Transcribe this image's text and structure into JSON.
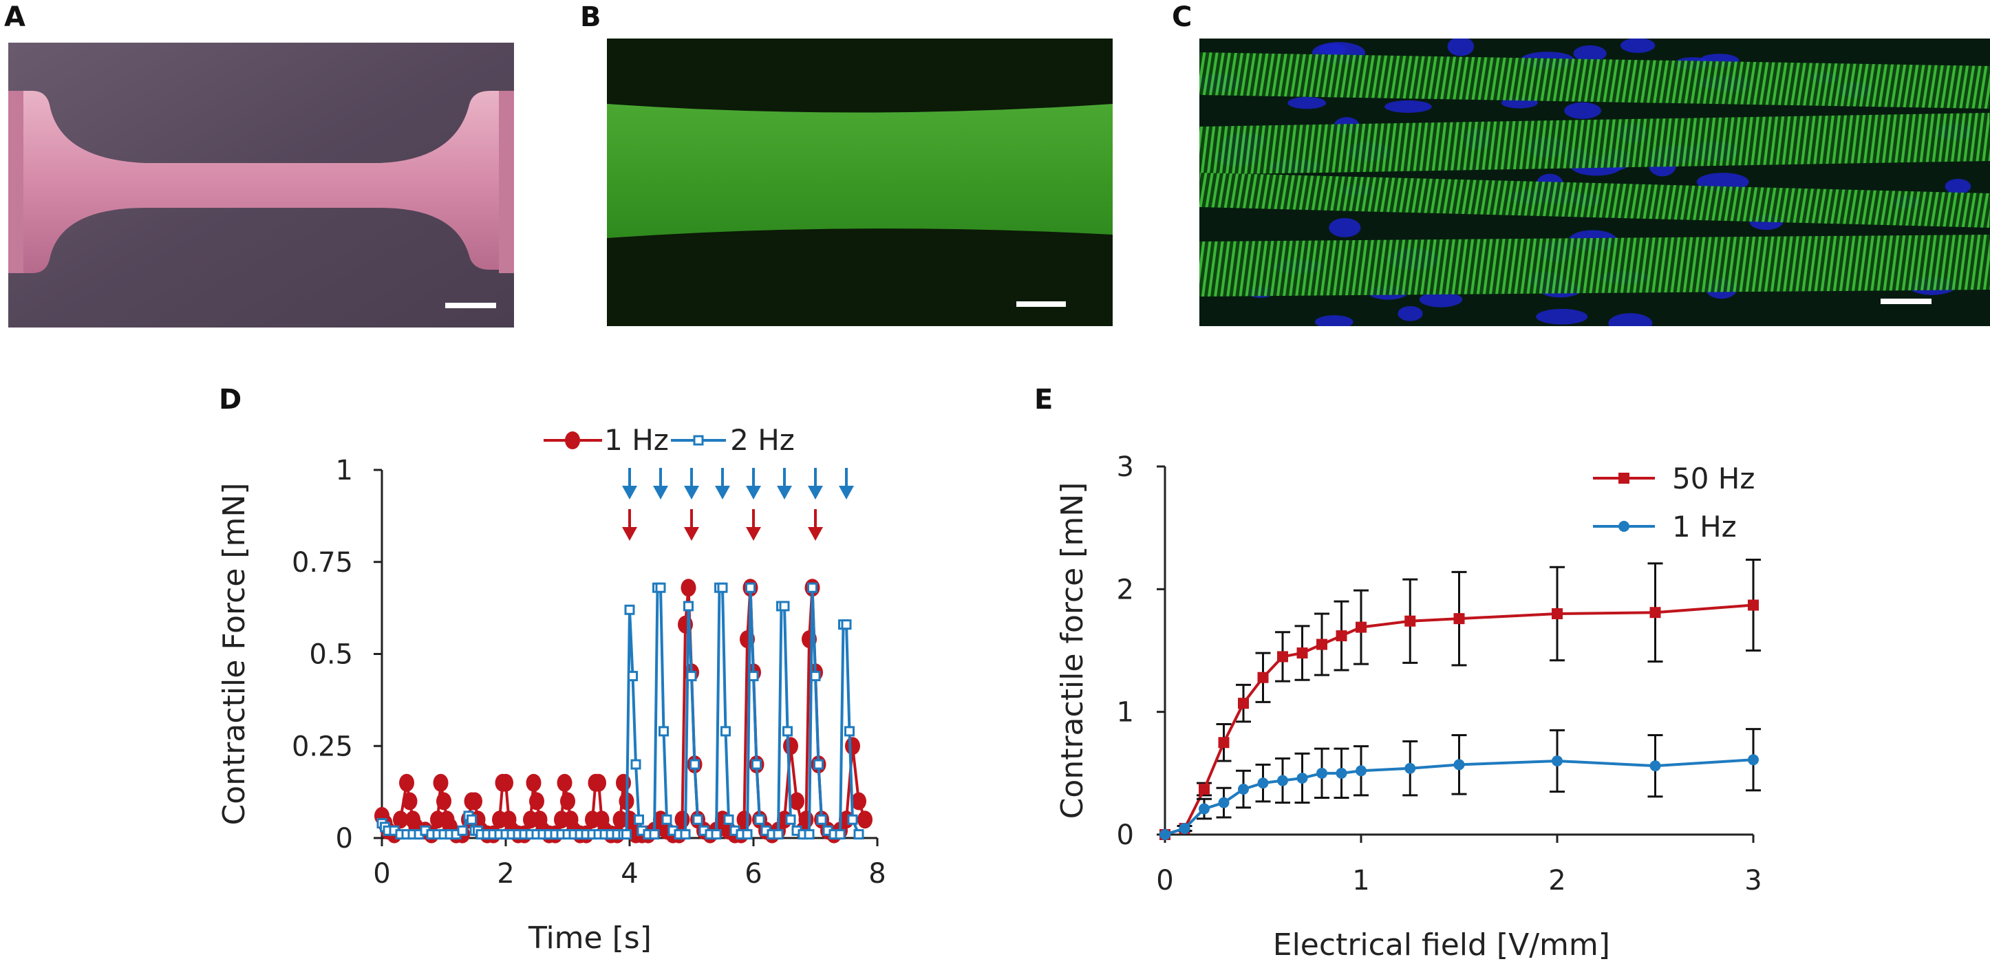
{
  "panels": {
    "a": {
      "label": "A"
    },
    "b": {
      "label": "B"
    },
    "c": {
      "label": "C"
    },
    "d": {
      "label": "D"
    },
    "e": {
      "label": "E"
    }
  },
  "colors": {
    "red": "#c0141c",
    "blue": "#1f7bbf",
    "tissue_pink": "#d58aa8",
    "tissue_bg": "#55475a",
    "fluor_green": "#3d9a26",
    "nucleus_blue": "#1a23c8"
  },
  "chart_data": [
    {
      "id": "D",
      "type": "line",
      "title": "",
      "xlabel": "Time [s]",
      "ylabel": "Contractile Force [mN]",
      "xlim": [
        0,
        8
      ],
      "ylim": [
        0,
        1
      ],
      "xticks": [
        0,
        2,
        4,
        6,
        8
      ],
      "yticks": [
        0,
        0.25,
        0.5,
        0.75,
        1
      ],
      "ytick_labels": [
        "0",
        "0.25",
        "0.5",
        "0.75",
        "1"
      ],
      "legend_position": "top-right",
      "red_arrows_x": [
        4.0,
        5.0,
        6.0,
        7.0
      ],
      "blue_arrows_x": [
        4.0,
        4.5,
        5.0,
        5.5,
        6.0,
        6.5,
        7.0,
        7.5
      ],
      "series": [
        {
          "name": "1 Hz",
          "color": "#c0141c",
          "marker": "circle",
          "x": [
            0.0,
            0.05,
            0.1,
            0.2,
            0.3,
            0.4,
            0.45,
            0.5,
            0.55,
            0.6,
            0.7,
            0.8,
            0.9,
            0.95,
            1.0,
            1.05,
            1.1,
            1.2,
            1.3,
            1.4,
            1.45,
            1.5,
            1.55,
            1.6,
            1.7,
            1.8,
            1.9,
            1.95,
            2.0,
            2.05,
            2.1,
            2.2,
            2.3,
            2.4,
            2.45,
            2.5,
            2.55,
            2.6,
            2.7,
            2.8,
            2.9,
            2.95,
            3.0,
            3.05,
            3.1,
            3.2,
            3.3,
            3.4,
            3.45,
            3.5,
            3.55,
            3.6,
            3.7,
            3.8,
            3.85,
            3.9,
            3.95,
            4.0,
            4.05,
            4.1,
            4.2,
            4.3,
            4.4,
            4.5,
            4.6,
            4.7,
            4.8,
            4.85,
            4.9,
            4.95,
            5.0,
            5.05,
            5.1,
            5.2,
            5.3,
            5.4,
            5.5,
            5.6,
            5.7,
            5.8,
            5.85,
            5.9,
            5.95,
            6.0,
            6.05,
            6.1,
            6.2,
            6.3,
            6.4,
            6.5,
            6.6,
            6.7,
            6.8,
            6.85,
            6.9,
            6.95,
            7.0,
            7.05,
            7.1,
            7.2,
            7.3,
            7.4,
            7.5,
            7.6,
            7.7,
            7.8
          ],
          "y": [
            0.06,
            0.04,
            0.02,
            0.01,
            0.05,
            0.15,
            0.1,
            0.05,
            0.03,
            0.02,
            0.02,
            0.01,
            0.05,
            0.15,
            0.1,
            0.05,
            0.03,
            0.01,
            0.01,
            0.05,
            0.1,
            0.1,
            0.05,
            0.02,
            0.01,
            0.01,
            0.05,
            0.15,
            0.15,
            0.05,
            0.02,
            0.01,
            0.01,
            0.05,
            0.15,
            0.1,
            0.05,
            0.02,
            0.01,
            0.01,
            0.05,
            0.15,
            0.1,
            0.05,
            0.02,
            0.01,
            0.01,
            0.05,
            0.15,
            0.15,
            0.05,
            0.02,
            0.01,
            0.01,
            0.05,
            0.15,
            0.1,
            0.05,
            0.02,
            0.01,
            0.01,
            0.01,
            0.02,
            0.05,
            0.02,
            0.01,
            0.01,
            0.05,
            0.58,
            0.68,
            0.45,
            0.2,
            0.05,
            0.02,
            0.01,
            0.02,
            0.05,
            0.02,
            0.01,
            0.01,
            0.05,
            0.54,
            0.68,
            0.45,
            0.2,
            0.05,
            0.02,
            0.01,
            0.02,
            0.05,
            0.25,
            0.1,
            0.02,
            0.05,
            0.54,
            0.68,
            0.45,
            0.2,
            0.05,
            0.02,
            0.01,
            0.02,
            0.05,
            0.25,
            0.1,
            0.05
          ]
        },
        {
          "name": "2 Hz",
          "color": "#1f7bbf",
          "marker": "square-open",
          "x": [
            0.0,
            0.05,
            0.1,
            0.2,
            0.3,
            0.4,
            0.5,
            0.6,
            0.7,
            0.8,
            0.9,
            1.0,
            1.1,
            1.2,
            1.3,
            1.4,
            1.45,
            1.5,
            1.55,
            1.6,
            1.7,
            1.8,
            1.9,
            2.0,
            2.1,
            2.2,
            2.3,
            2.4,
            2.5,
            2.6,
            2.7,
            2.8,
            2.9,
            3.0,
            3.1,
            3.2,
            3.3,
            3.4,
            3.5,
            3.6,
            3.7,
            3.8,
            3.9,
            3.95,
            4.0,
            4.05,
            4.1,
            4.15,
            4.2,
            4.3,
            4.4,
            4.45,
            4.5,
            4.55,
            4.6,
            4.7,
            4.8,
            4.9,
            4.95,
            5.0,
            5.05,
            5.1,
            5.2,
            5.3,
            5.4,
            5.45,
            5.5,
            5.55,
            5.6,
            5.7,
            5.8,
            5.9,
            5.95,
            6.0,
            6.05,
            6.1,
            6.2,
            6.3,
            6.4,
            6.45,
            6.5,
            6.55,
            6.6,
            6.7,
            6.8,
            6.9,
            6.95,
            7.0,
            7.05,
            7.1,
            7.2,
            7.3,
            7.4,
            7.45,
            7.5,
            7.55,
            7.6,
            7.7
          ],
          "y": [
            0.04,
            0.03,
            0.02,
            0.02,
            0.01,
            0.01,
            0.01,
            0.01,
            0.02,
            0.01,
            0.01,
            0.01,
            0.01,
            0.01,
            0.02,
            0.06,
            0.05,
            0.02,
            0.02,
            0.01,
            0.01,
            0.01,
            0.01,
            0.01,
            0.01,
            0.01,
            0.01,
            0.01,
            0.01,
            0.01,
            0.01,
            0.01,
            0.01,
            0.01,
            0.01,
            0.01,
            0.01,
            0.01,
            0.01,
            0.01,
            0.01,
            0.01,
            0.01,
            0.01,
            0.62,
            0.44,
            0.2,
            0.05,
            0.02,
            0.01,
            0.01,
            0.68,
            0.68,
            0.29,
            0.05,
            0.02,
            0.01,
            0.01,
            0.63,
            0.44,
            0.2,
            0.05,
            0.02,
            0.01,
            0.01,
            0.68,
            0.68,
            0.29,
            0.05,
            0.02,
            0.01,
            0.01,
            0.68,
            0.44,
            0.2,
            0.05,
            0.02,
            0.01,
            0.01,
            0.63,
            0.63,
            0.29,
            0.05,
            0.02,
            0.01,
            0.01,
            0.68,
            0.44,
            0.2,
            0.05,
            0.02,
            0.01,
            0.01,
            0.58,
            0.58,
            0.29,
            0.05,
            0.01
          ]
        }
      ]
    },
    {
      "id": "E",
      "type": "line",
      "title": "",
      "xlabel": "Electrical field [V/mm]",
      "ylabel": "Contractile force [mN]",
      "xlim": [
        0,
        3
      ],
      "ylim": [
        0,
        3
      ],
      "xticks": [
        0,
        1,
        2,
        3
      ],
      "yticks": [
        0,
        1,
        2,
        3
      ],
      "legend_position": "top-right",
      "series": [
        {
          "name": "50 Hz",
          "color": "#c0141c",
          "marker": "square",
          "x": [
            0,
            0.1,
            0.2,
            0.3,
            0.4,
            0.5,
            0.6,
            0.7,
            0.8,
            0.9,
            1.0,
            1.25,
            1.5,
            2.0,
            2.5,
            3.0
          ],
          "y": [
            0,
            0.05,
            0.37,
            0.75,
            1.07,
            1.28,
            1.45,
            1.48,
            1.55,
            1.62,
            1.69,
            1.74,
            1.76,
            1.8,
            1.81,
            1.87
          ],
          "err": [
            0,
            0.02,
            0.05,
            0.15,
            0.15,
            0.2,
            0.2,
            0.22,
            0.25,
            0.28,
            0.3,
            0.34,
            0.38,
            0.38,
            0.4,
            0.37
          ]
        },
        {
          "name": "1 Hz",
          "color": "#1f7bbf",
          "marker": "circle",
          "x": [
            0,
            0.1,
            0.2,
            0.3,
            0.4,
            0.5,
            0.6,
            0.7,
            0.8,
            0.9,
            1.0,
            1.25,
            1.5,
            2.0,
            2.5,
            3.0
          ],
          "y": [
            0,
            0.05,
            0.21,
            0.26,
            0.37,
            0.42,
            0.44,
            0.46,
            0.5,
            0.5,
            0.52,
            0.54,
            0.57,
            0.6,
            0.56,
            0.61
          ],
          "err": [
            0,
            0.02,
            0.08,
            0.12,
            0.15,
            0.15,
            0.18,
            0.2,
            0.2,
            0.2,
            0.2,
            0.22,
            0.24,
            0.25,
            0.25,
            0.25
          ]
        }
      ]
    }
  ]
}
